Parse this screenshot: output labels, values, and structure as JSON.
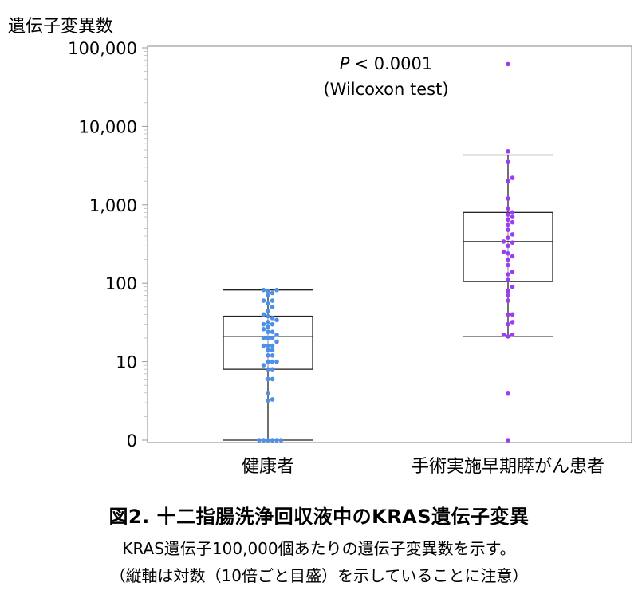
{
  "chart_data": {
    "type": "box",
    "ylabel": "遺伝子変異数",
    "y_scale": "log",
    "y_ticks": [
      "0",
      "10",
      "100",
      "1,000",
      "10,000",
      "100,000"
    ],
    "categories": [
      "健康者",
      "手術実施早期膵がん患者"
    ],
    "annotation": {
      "stat": "< 0.0001",
      "test": "(Wilcoxon test)",
      "p_symbol": "P"
    },
    "colors": {
      "healthy": "#4f8fe6",
      "patients": "#9b3df0",
      "box": "#222222",
      "frame": "#999999"
    },
    "groups": [
      {
        "name": "健康者",
        "whisker_low": 1,
        "q1": 8,
        "median": 21,
        "q3": 38,
        "whisker_high": 82,
        "points": [
          1,
          1,
          1,
          1,
          1,
          1,
          3.2,
          3.3,
          4,
          6,
          6,
          8,
          8,
          9,
          10,
          10,
          10,
          12,
          12,
          14,
          14,
          16,
          16,
          16,
          18,
          20,
          20,
          20,
          22,
          24,
          24,
          26,
          28,
          30,
          30,
          32,
          34,
          36,
          38,
          40,
          44,
          50,
          55,
          60,
          60,
          70,
          75,
          80,
          82,
          82
        ]
      },
      {
        "name": "手術実施早期膵がん患者",
        "whisker_low": 21,
        "q1": 105,
        "median": 340,
        "q3": 800,
        "whisker_high": 4300,
        "points": [
          1,
          4,
          21,
          22,
          22,
          30,
          32,
          40,
          40,
          60,
          70,
          80,
          90,
          110,
          130,
          140,
          170,
          200,
          220,
          240,
          250,
          300,
          330,
          340,
          380,
          420,
          480,
          550,
          600,
          650,
          700,
          750,
          800,
          900,
          1200,
          2000,
          2200,
          3500,
          4800,
          62000
        ]
      }
    ]
  },
  "caption": {
    "title": "図2. 十二指腸洗浄回収液中のKRAS遺伝子変異",
    "line1": "KRAS遺伝子100,000個あたりの遺伝子変異数を示す。",
    "line2": "（縦軸は対数（10倍ごと目盛）を示していることに注意）"
  }
}
